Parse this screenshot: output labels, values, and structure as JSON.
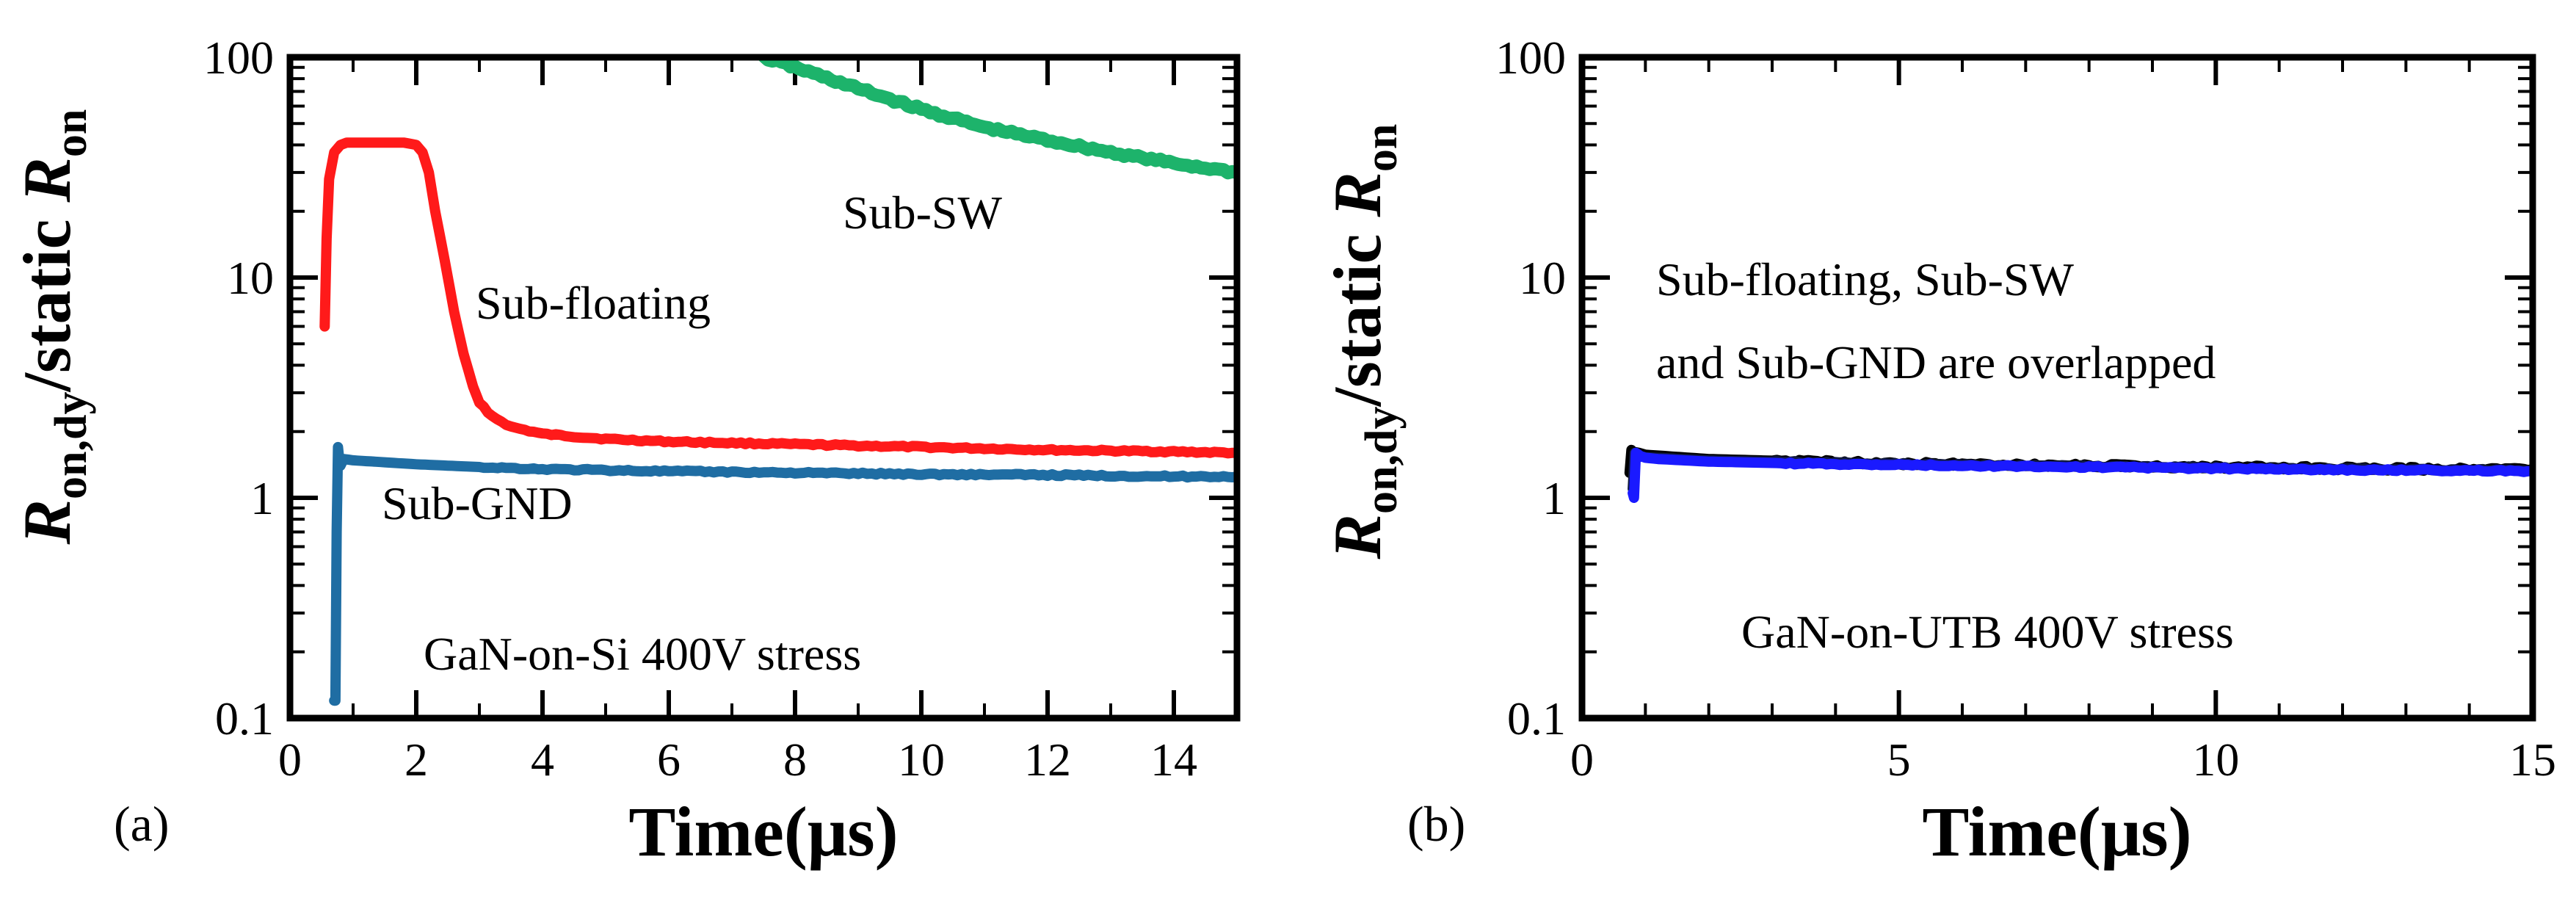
{
  "chart_data": [
    {
      "type": "line",
      "panel_label": "(a)",
      "xlabel": "Time(μs)",
      "ylabel": {
        "main": "R",
        "sub": "on,dy",
        "mid": "/static ",
        "main2": "R",
        "sub2": "on"
      },
      "xlim": [
        0,
        15
      ],
      "ylim": [
        0.1,
        100
      ],
      "yscale": "log",
      "xticks": [
        0,
        2,
        4,
        6,
        8,
        10,
        12,
        14
      ],
      "yticks": [
        0.1,
        1,
        10,
        100
      ],
      "ytick_labels": [
        "0.1",
        "1",
        "10",
        "100"
      ],
      "annotations": [
        "Sub-floating",
        "Sub-SW",
        "Sub-GND",
        "GaN-on-Si 400V stress"
      ],
      "series": [
        {
          "name": "Sub-floating",
          "color": "#ff1a1a",
          "x": [
            0.55,
            0.58,
            0.62,
            0.7,
            0.8,
            0.9,
            1.0,
            1.2,
            1.5,
            1.8,
            2.0,
            2.1,
            2.2,
            2.3,
            2.45,
            2.6,
            2.75,
            2.9,
            3.0,
            3.2,
            3.5,
            4.0,
            5.0,
            6.0,
            8.0,
            10.0,
            12.0,
            14.0,
            15.0
          ],
          "y": [
            6,
            15,
            28,
            37,
            40,
            41,
            41,
            41,
            41,
            41,
            40,
            37,
            30,
            20,
            12,
            7,
            4.5,
            3.2,
            2.7,
            2.35,
            2.1,
            1.95,
            1.85,
            1.8,
            1.75,
            1.7,
            1.65,
            1.62,
            1.6
          ]
        },
        {
          "name": "Sub-SW",
          "color": "#1db36b",
          "x": [
            7.5,
            8.0,
            9.0,
            10.0,
            11.0,
            12.0,
            13.0,
            14.0,
            15.0
          ],
          "y": [
            100,
            90,
            72,
            58,
            48,
            42,
            37,
            33,
            30
          ]
        },
        {
          "name": "Sub-GND",
          "color": "#1f6da3",
          "x": [
            0.7,
            0.72,
            0.74,
            0.76,
            0.78,
            0.8,
            0.85,
            1.0,
            1.5,
            2.0,
            3.0,
            4.0,
            6.0,
            8.0,
            10.0,
            12.0,
            14.0,
            15.0
          ],
          "y": [
            0.12,
            0.12,
            0.7,
            1.7,
            1.5,
            1.4,
            1.5,
            1.48,
            1.45,
            1.42,
            1.38,
            1.35,
            1.32,
            1.3,
            1.28,
            1.27,
            1.25,
            1.25
          ]
        }
      ]
    },
    {
      "type": "line",
      "panel_label": "(b)",
      "xlabel": "Time(μs)",
      "ylabel": {
        "main": "R",
        "sub": "on,dy",
        "mid": "/static ",
        "main2": "R",
        "sub2": "on"
      },
      "xlim": [
        0,
        15
      ],
      "ylim": [
        0.1,
        100
      ],
      "yscale": "log",
      "xticks": [
        0,
        5,
        10,
        15
      ],
      "yticks": [
        0.1,
        1,
        10,
        100
      ],
      "ytick_labels": [
        "0.1",
        "1",
        "10",
        "100"
      ],
      "annotations": [
        "Sub-floating, Sub-SW",
        "and Sub-GND are overlapped",
        "GaN-on-UTB 400V stress"
      ],
      "series": [
        {
          "name": "Sub-SW",
          "color": "#000000",
          "x": [
            0.75,
            0.78,
            0.8,
            0.9,
            1.0,
            2.0,
            4.0,
            6.0,
            8.0,
            10.0,
            12.0,
            14.0,
            15.0
          ],
          "y": [
            1.3,
            1.65,
            1.62,
            1.6,
            1.57,
            1.5,
            1.45,
            1.42,
            1.4,
            1.38,
            1.36,
            1.35,
            1.35
          ]
        },
        {
          "name": "Sub-GND",
          "color": "#111a40",
          "x": [
            0.8,
            0.83,
            0.86,
            0.9,
            1.0,
            2.0,
            4.0,
            6.0,
            8.0,
            10.0,
            12.0,
            14.0,
            15.0
          ],
          "y": [
            1.1,
            1.6,
            1.55,
            1.55,
            1.53,
            1.48,
            1.44,
            1.41,
            1.39,
            1.37,
            1.35,
            1.34,
            1.33
          ]
        },
        {
          "name": "Sub-floating",
          "color": "#1a1aff",
          "x": [
            0.8,
            0.82,
            0.85,
            0.88,
            0.92,
            1.0,
            1.2,
            2.0,
            4.0,
            6.0,
            8.0,
            10.0,
            12.0,
            14.0,
            15.0
          ],
          "y": [
            1.05,
            1.0,
            1.6,
            1.58,
            1.55,
            1.52,
            1.5,
            1.46,
            1.42,
            1.4,
            1.38,
            1.36,
            1.34,
            1.33,
            1.32
          ]
        }
      ]
    }
  ]
}
